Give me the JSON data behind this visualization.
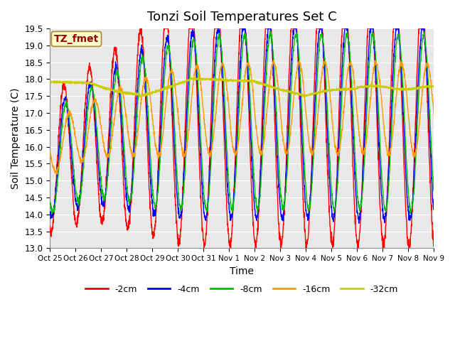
{
  "title": "Tonzi Soil Temperatures Set C",
  "xlabel": "Time",
  "ylabel": "Soil Temperature (C)",
  "ylim": [
    13.0,
    19.5
  ],
  "yticks": [
    13.0,
    13.5,
    14.0,
    14.5,
    15.0,
    15.5,
    16.0,
    16.5,
    17.0,
    17.5,
    18.0,
    18.5,
    19.0,
    19.5
  ],
  "xtick_labels": [
    "Oct 25",
    "Oct 26",
    "Oct 27",
    "Oct 28",
    "Oct 29",
    "Oct 30",
    "Oct 31",
    "Nov 1",
    "Nov 2",
    "Nov 3",
    "Nov 4",
    "Nov 5",
    "Nov 6",
    "Nov 7",
    "Nov 8",
    "Nov 9"
  ],
  "legend_labels": [
    "-2cm",
    "-4cm",
    "-8cm",
    "-16cm",
    "-32cm"
  ],
  "line_colors": [
    "#ff0000",
    "#0000ff",
    "#00bb00",
    "#ff9900",
    "#cccc00"
  ],
  "annotation_text": "TZ_fmet",
  "annotation_color": "#990000",
  "annotation_bg": "#ffffcc",
  "plot_bg": "#e8e8e8",
  "title_fontsize": 13,
  "label_fontsize": 10
}
